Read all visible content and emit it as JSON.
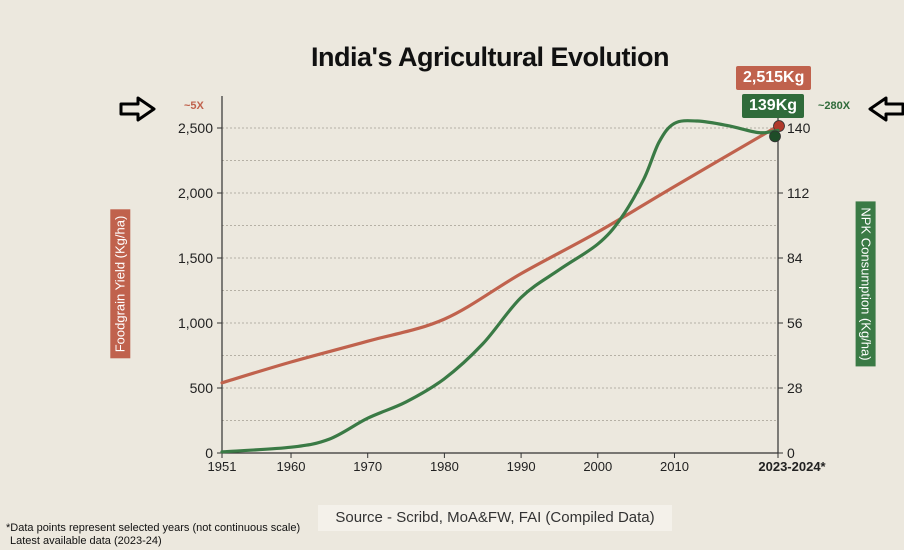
{
  "title": "India's Agricultural Evolution",
  "source": "Source - Scribd, MoA&FW, FAI (Compiled Data)",
  "footnote_line1": "*Data points represent selected years (not continuous scale)",
  "footnote_line2": "Latest available data (2023-24)",
  "badge_yield": "2,515Kg",
  "badge_npk": "139Kg",
  "mult_left": "~5X",
  "mult_right": "~280X",
  "icons": [
    "arrow-right-icon",
    "arrow-left-icon"
  ],
  "colors": {
    "yield": "#c0624d",
    "npk": "#3a7a45",
    "background": "#ece8de"
  },
  "chart_data": {
    "type": "line",
    "xlabel": "",
    "x_ticks": [
      "1951",
      "1960",
      "1970",
      "1980",
      "1990",
      "2000",
      "2010",
      "2023-2024*"
    ],
    "ylabel_left": "Foodgrain Yield (Kg/ha)",
    "ylabel_right": "NPK Consumption (Kg/ha)",
    "ylim_left": [
      0,
      2500
    ],
    "ylim_right": [
      0,
      140
    ],
    "y_ticks_left": [
      "0",
      "500",
      "1,000",
      "1,500",
      "2,000",
      "2,500"
    ],
    "y_ticks_right": [
      "0",
      "28",
      "56",
      "84",
      "112",
      "140"
    ],
    "grid": true,
    "series": [
      {
        "axis": "left",
        "color": "#c0624d",
        "points": [
          [
            1951,
            540
          ],
          [
            1960,
            700
          ],
          [
            1970,
            860
          ],
          [
            1980,
            1030
          ],
          [
            1990,
            1380
          ],
          [
            2000,
            1700
          ],
          [
            2010,
            2050
          ],
          [
            2023.5,
            2515
          ]
        ]
      },
      {
        "axis": "right",
        "color": "#3a7a45",
        "points": [
          [
            1951,
            0.5
          ],
          [
            1960,
            2.5
          ],
          [
            1965,
            6
          ],
          [
            1970,
            15
          ],
          [
            1975,
            22
          ],
          [
            1980,
            32
          ],
          [
            1985,
            47
          ],
          [
            1990,
            67
          ],
          [
            1995,
            79
          ],
          [
            2000,
            90
          ],
          [
            2003,
            101
          ],
          [
            2006,
            118
          ],
          [
            2008,
            134
          ],
          [
            2010,
            142
          ],
          [
            2013,
            143
          ],
          [
            2017,
            141
          ],
          [
            2021,
            138
          ],
          [
            2023.5,
            139
          ]
        ]
      }
    ]
  }
}
